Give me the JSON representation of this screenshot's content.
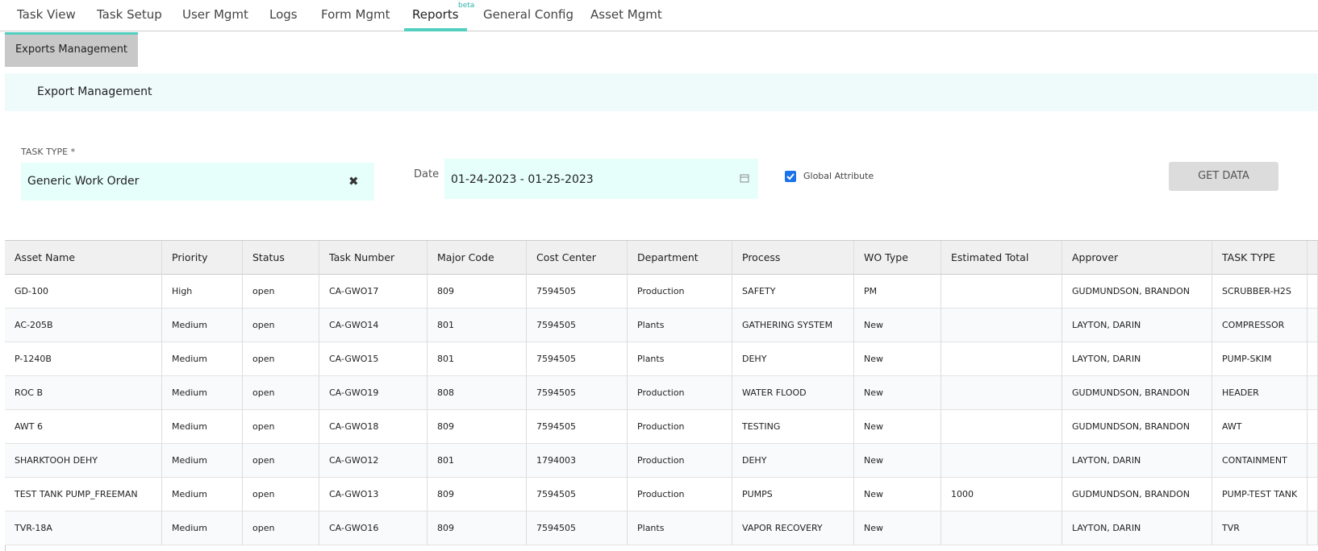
{
  "nav": {
    "tabs": [
      "Task View",
      "Task Setup",
      "User Mgmt",
      "Logs",
      "Form Mgmt",
      "Reports",
      "General Config",
      "Asset Mgmt"
    ],
    "active": "Reports",
    "badge": "beta"
  },
  "subtab": "Exports Management",
  "section_title": "Export Management",
  "form": {
    "task_type_label": "TASK TYPE *",
    "task_type_value": "Generic Work Order",
    "date_label": "Date",
    "date_value": "01-24-2023 - 01-25-2023",
    "checkbox_label": "Global Attribute",
    "button": "GET DATA"
  },
  "table": {
    "headers": [
      "Asset Name",
      "Priority",
      "Status",
      "Task Number",
      "Major Code",
      "Cost Center",
      "Department",
      "Process",
      "WO Type",
      "Estimated Total",
      "Approver",
      "TASK TYPE"
    ],
    "rows": [
      [
        "GD-100",
        "High",
        "open",
        "CA-GWO17",
        "809",
        "7594505",
        "Production",
        "SAFETY",
        "PM",
        null,
        "GUDMUNDSON, BRANDON",
        "SCRUBBER-H2S"
      ],
      [
        "AC-205B",
        "Medium",
        "open",
        "CA-GWO14",
        "801",
        "7594505",
        "Plants",
        "GATHERING SYSTEM",
        "New",
        null,
        "LAYTON, DARIN",
        "COMPRESSOR"
      ],
      [
        "P-1240B",
        "Medium",
        "open",
        "CA-GWO15",
        "801",
        "7594505",
        "Plants",
        "DEHY",
        "New",
        null,
        "LAYTON, DARIN",
        "PUMP-SKIM"
      ],
      [
        "ROC B",
        "Medium",
        "open",
        "CA-GWO19",
        "808",
        "7594505",
        "Production",
        "WATER FLOOD",
        "New",
        null,
        "GUDMUNDSON, BRANDON",
        "HEADER"
      ],
      [
        "AWT 6",
        "Medium",
        "open",
        "CA-GWO18",
        "809",
        "7594505",
        "Production",
        "TESTING",
        "New",
        null,
        "GUDMUNDSON, BRANDON",
        "AWT"
      ],
      [
        "SHARKTOOH DEHY",
        "Medium",
        "open",
        "CA-GWO12",
        "801",
        "1794003",
        "Production",
        "DEHY",
        "New",
        null,
        "LAYTON, DARIN",
        "CONTAINMENT"
      ],
      [
        "TEST TANK PUMP_FREEMAN",
        "Medium",
        "open",
        "CA-GWO13",
        "809",
        "7594505",
        "Production",
        "PUMPS",
        "New",
        "1000",
        "GUDMUNDSON, BRANDON",
        "PUMP-TEST TANK"
      ],
      [
        "TVR-18A",
        "Medium",
        "open",
        "CA-GWO16",
        "809",
        "7594505",
        "Plants",
        "VAPOR RECOVERY",
        "New",
        null,
        "LAYTON, DARIN",
        "TVR"
      ]
    ]
  }
}
